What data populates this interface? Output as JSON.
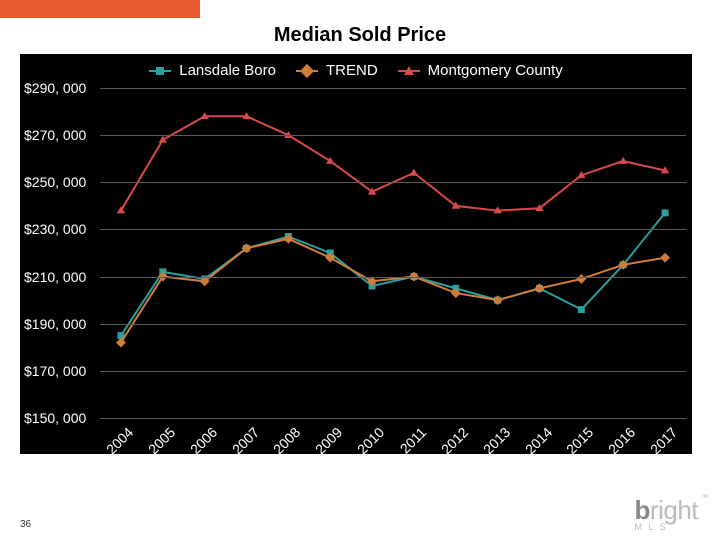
{
  "layout": {
    "orange_bar_color": "#e65c2e",
    "chart_bg": "#000000",
    "grid_color": "#5a5a5a",
    "text_color": "#ffffff",
    "page_number": "36"
  },
  "title": "Median Sold Price",
  "chart": {
    "type": "line",
    "ylim": [
      150000,
      290000
    ],
    "ytick_step": 20000,
    "y_labels": [
      "$290, 000",
      "$270, 000",
      "$250, 000",
      "$230, 000",
      "$210, 000",
      "$190, 000",
      "$170, 000",
      "$150, 000"
    ],
    "x_labels": [
      "2004",
      "2005",
      "2006",
      "2007",
      "2008",
      "2009",
      "2010",
      "2011",
      "2012",
      "2013",
      "2014",
      "2015",
      "2016",
      "2017"
    ],
    "series": [
      {
        "name": "Lansdale Boro",
        "color": "#2b9e9e",
        "marker": "square",
        "values": [
          185000,
          212000,
          209000,
          222000,
          227000,
          220000,
          206000,
          210000,
          205000,
          200000,
          205000,
          196000,
          215000,
          237000
        ]
      },
      {
        "name": "TREND",
        "color": "#d07c3a",
        "marker": "diamond",
        "values": [
          182000,
          210000,
          208000,
          222000,
          226000,
          218000,
          208000,
          210000,
          203000,
          200000,
          205000,
          209000,
          215000,
          218000
        ]
      },
      {
        "name": "Montgomery County",
        "color": "#d84a4a",
        "marker": "triangle",
        "values": [
          238000,
          268000,
          278000,
          278000,
          270000,
          259000,
          246000,
          254000,
          240000,
          238000,
          239000,
          253000,
          259000,
          255000
        ]
      }
    ],
    "line_width": 2,
    "marker_size": 7,
    "label_fontsize": 14,
    "title_fontsize": 20
  },
  "logo": {
    "text": "bright",
    "sub": "M L S"
  }
}
